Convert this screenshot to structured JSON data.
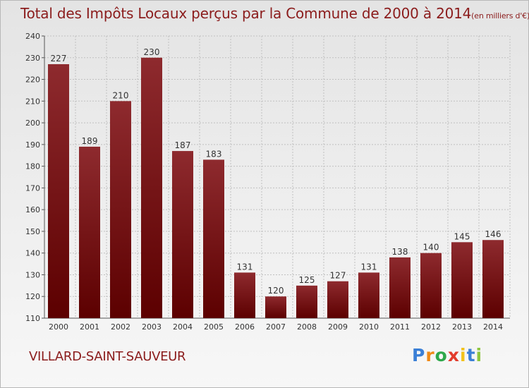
{
  "header": {
    "title": "Total des Impôts Locaux perçus par la Commune de 2000 à 2014",
    "unit": "(en milliers d'€)"
  },
  "footer": {
    "commune": "VILLARD-SAINT-SAUVEUR",
    "logo": "Proxiti"
  },
  "colors": {
    "bar_top": "#8e2a2e",
    "bar_bottom": "#5c0000",
    "title": "#8b1c1c",
    "grid": "#c0c0c0"
  },
  "chart_data": {
    "type": "bar",
    "title": "Total des Impôts Locaux perçus par la Commune de 2000 à 2014",
    "xlabel": "",
    "ylabel": "(en milliers d'€)",
    "categories": [
      "2000",
      "2001",
      "2002",
      "2003",
      "2004",
      "2005",
      "2006",
      "2007",
      "2008",
      "2009",
      "2010",
      "2011",
      "2012",
      "2013",
      "2014"
    ],
    "values": [
      227,
      189,
      210,
      230,
      187,
      183,
      131,
      120,
      125,
      127,
      131,
      138,
      140,
      145,
      146
    ],
    "ylim": [
      110,
      240
    ],
    "yticks": [
      110,
      120,
      130,
      140,
      150,
      160,
      170,
      180,
      190,
      200,
      210,
      220,
      230,
      240
    ],
    "grid": true
  }
}
